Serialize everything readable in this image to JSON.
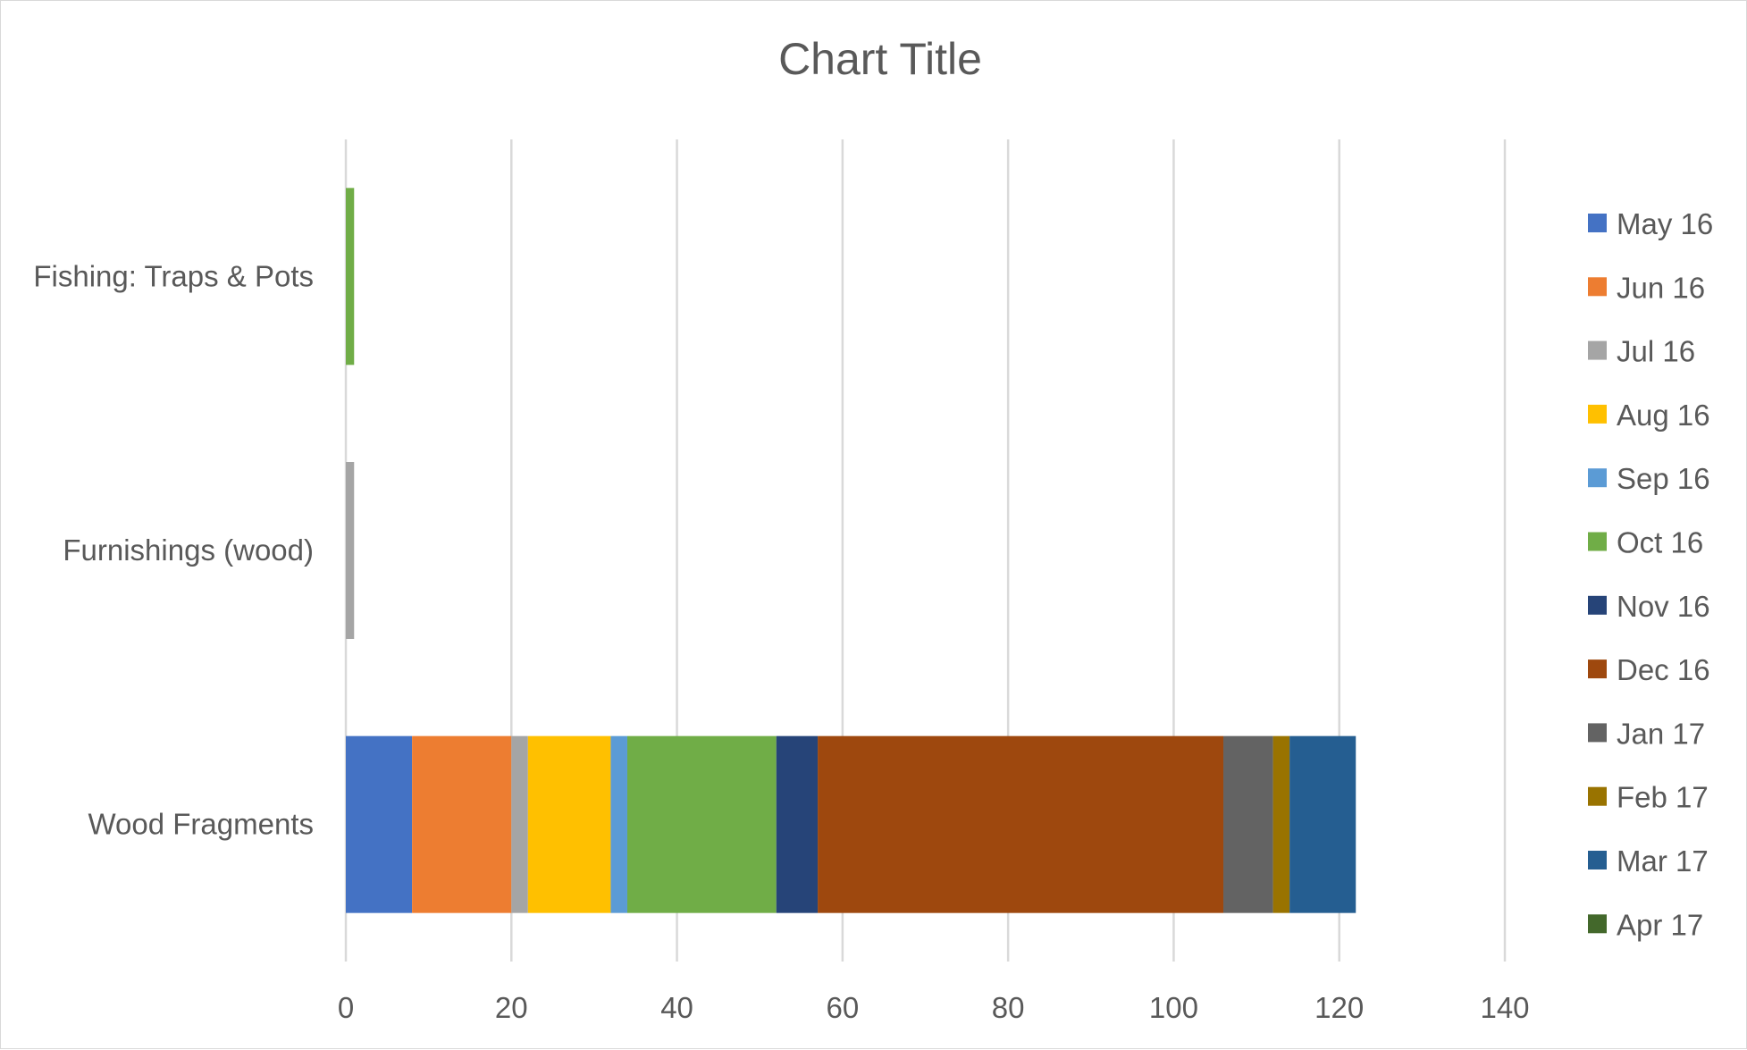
{
  "chart_data": {
    "type": "bar",
    "orientation": "horizontal",
    "stacked": true,
    "title": "Chart Title",
    "xlabel": "",
    "ylabel": "",
    "categories": [
      "Wood Fragments",
      "Furnishings (wood)",
      "Fishing: Traps & Pots"
    ],
    "xlim": [
      0,
      140
    ],
    "x_ticks": [
      0,
      20,
      40,
      60,
      80,
      100,
      120,
      140
    ],
    "grid": true,
    "legend_position": "right",
    "series": [
      {
        "name": "May 16",
        "color": "#4472C4",
        "values": [
          8,
          0,
          0
        ]
      },
      {
        "name": "Jun 16",
        "color": "#ED7D31",
        "values": [
          12,
          0,
          0
        ]
      },
      {
        "name": "Jul 16",
        "color": "#A5A5A5",
        "values": [
          2,
          1,
          0
        ]
      },
      {
        "name": "Aug 16",
        "color": "#FFC000",
        "values": [
          10,
          0,
          0
        ]
      },
      {
        "name": "Sep 16",
        "color": "#5B9BD5",
        "values": [
          2,
          0,
          0
        ]
      },
      {
        "name": "Oct 16",
        "color": "#70AD47",
        "values": [
          18,
          0,
          1
        ]
      },
      {
        "name": "Nov 16",
        "color": "#264478",
        "values": [
          5,
          0,
          0
        ]
      },
      {
        "name": "Dec 16",
        "color": "#9E480E",
        "values": [
          49,
          0,
          0
        ]
      },
      {
        "name": "Jan 17",
        "color": "#636363",
        "values": [
          6,
          0,
          0
        ]
      },
      {
        "name": "Feb 17",
        "color": "#997300",
        "values": [
          2,
          0,
          0
        ]
      },
      {
        "name": "Mar 17",
        "color": "#255E91",
        "values": [
          8,
          0,
          0
        ]
      },
      {
        "name": "Apr 17",
        "color": "#43682B",
        "values": [
          0,
          0,
          0
        ]
      }
    ]
  }
}
